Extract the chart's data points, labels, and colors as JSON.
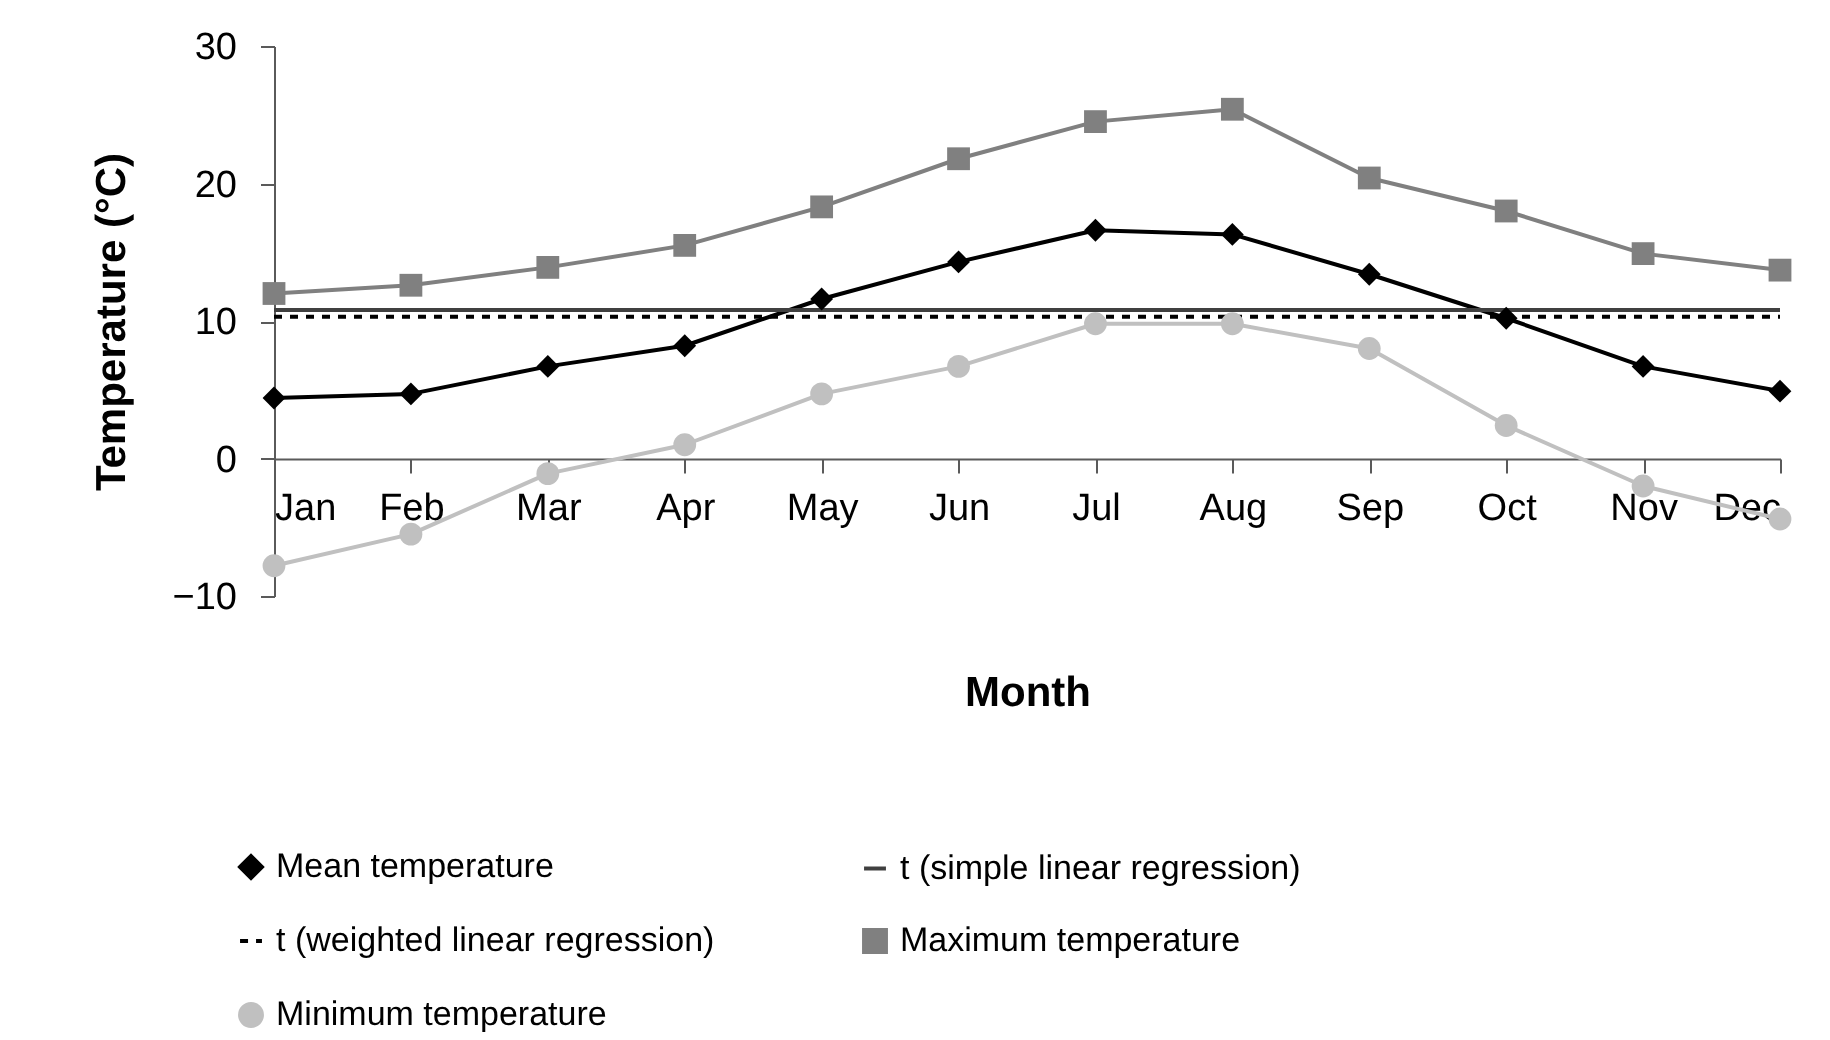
{
  "chart_data": {
    "type": "line",
    "xlabel": "Month",
    "ylabel": "Temperature (°C)",
    "categories": [
      "Jan",
      "Feb",
      "Mar",
      "Apr",
      "May",
      "Jun",
      "Jul",
      "Aug",
      "Sep",
      "Oct",
      "Nov",
      "Dec"
    ],
    "ylim": [
      -10,
      30
    ],
    "yticks": [
      -10,
      0,
      10,
      20,
      30
    ],
    "legend": "bottom",
    "series": [
      {
        "name": "Mean temperature",
        "color": "#000000",
        "marker": "diamond",
        "line_style": "solid",
        "values": [
          4.4,
          4.7,
          6.7,
          8.2,
          11.6,
          14.3,
          16.6,
          16.3,
          13.4,
          10.2,
          6.7,
          4.9
        ]
      },
      {
        "name": "t (simple linear regression)",
        "color": "#404040",
        "marker": "none",
        "line_style": "solid",
        "values": [
          10.8,
          10.8,
          10.8,
          10.8,
          10.8,
          10.8,
          10.8,
          10.8,
          10.8,
          10.8,
          10.8,
          10.8
        ]
      },
      {
        "name": "t (weighted linear regression)",
        "color": "#000000",
        "marker": "none",
        "line_style": "dashed",
        "values": [
          10.3,
          10.3,
          10.3,
          10.3,
          10.3,
          10.3,
          10.3,
          10.3,
          10.3,
          10.3,
          10.3,
          10.3
        ]
      },
      {
        "name": "Maximum temperature",
        "color": "#808080",
        "marker": "square",
        "line_style": "solid",
        "values": [
          12.0,
          12.6,
          13.9,
          15.5,
          18.3,
          21.8,
          24.5,
          25.4,
          20.4,
          18.0,
          14.9,
          13.7
        ]
      },
      {
        "name": "Minimum temperature",
        "color": "#c0c0c0",
        "marker": "circle",
        "line_style": "solid",
        "values": [
          -7.8,
          -5.5,
          -1.1,
          1.0,
          4.7,
          6.7,
          9.8,
          9.8,
          8.0,
          2.4,
          -2.0,
          -4.4
        ]
      }
    ]
  }
}
